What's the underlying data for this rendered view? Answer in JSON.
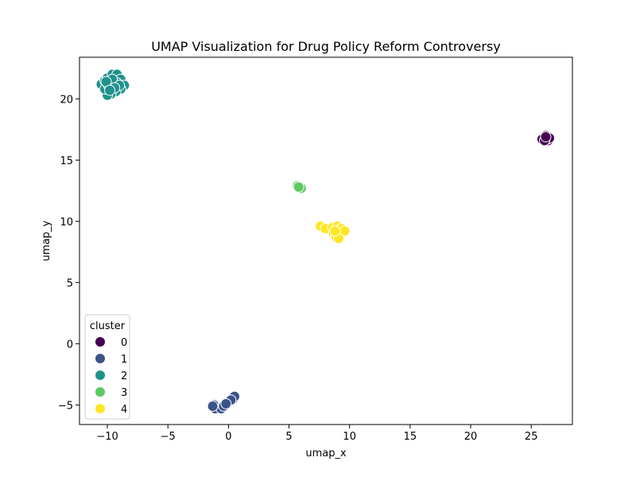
{
  "chart_data": {
    "type": "scatter",
    "title": "UMAP Visualization for Drug Policy Reform Controversy",
    "xlabel": "umap_x",
    "ylabel": "umap_y",
    "xlim": [
      -12.3,
      28.4
    ],
    "ylim": [
      -6.6,
      23.4
    ],
    "xticks": [
      -10,
      -5,
      0,
      5,
      10,
      15,
      20,
      25
    ],
    "yticks": [
      -5,
      0,
      5,
      10,
      15,
      20
    ],
    "xtick_labels": [
      "−10",
      "−5",
      "0",
      "5",
      "10",
      "15",
      "20",
      "25"
    ],
    "ytick_labels": [
      "−5",
      "0",
      "5",
      "10",
      "15",
      "20"
    ],
    "grid": false,
    "legend": {
      "title": "cluster",
      "location": "lower-left"
    },
    "series": [
      {
        "name": "0",
        "color": "#440154",
        "points": [
          [
            26.0,
            16.7
          ],
          [
            26.3,
            16.9
          ],
          [
            26.1,
            16.8
          ],
          [
            26.4,
            16.6
          ],
          [
            25.9,
            16.7
          ],
          [
            26.2,
            17.0
          ],
          [
            26.3,
            16.7
          ],
          [
            26.5,
            16.8
          ],
          [
            26.1,
            16.6
          ],
          [
            26.2,
            16.9
          ]
        ]
      },
      {
        "name": "1",
        "color": "#3b528b",
        "points": [
          [
            -1.2,
            -5.0
          ],
          [
            -1.1,
            -5.3
          ],
          [
            -0.6,
            -5.3
          ],
          [
            -0.4,
            -5.1
          ],
          [
            -0.1,
            -4.8
          ],
          [
            0.1,
            -4.7
          ],
          [
            0.3,
            -4.6
          ],
          [
            0.4,
            -4.5
          ],
          [
            0.5,
            -4.3
          ],
          [
            -1.3,
            -5.1
          ],
          [
            0.2,
            -4.6
          ],
          [
            -0.2,
            -4.9
          ]
        ]
      },
      {
        "name": "2",
        "color": "#21918c",
        "points": [
          [
            -10.5,
            21.2
          ],
          [
            -10.2,
            21.5
          ],
          [
            -10.0,
            21.7
          ],
          [
            -9.6,
            22.0
          ],
          [
            -9.2,
            22.0
          ],
          [
            -8.9,
            21.6
          ],
          [
            -8.6,
            21.1
          ],
          [
            -8.9,
            20.8
          ],
          [
            -9.3,
            20.6
          ],
          [
            -9.7,
            20.4
          ],
          [
            -10.0,
            20.3
          ],
          [
            -10.2,
            20.8
          ],
          [
            -9.9,
            21.1
          ],
          [
            -9.5,
            21.2
          ],
          [
            -9.2,
            21.3
          ],
          [
            -9.6,
            21.6
          ],
          [
            -10.1,
            21.4
          ],
          [
            -9.0,
            21.1
          ],
          [
            -9.4,
            20.9
          ],
          [
            -9.8,
            20.7
          ]
        ]
      },
      {
        "name": "3",
        "color": "#5ec962",
        "points": [
          [
            5.7,
            12.9
          ],
          [
            5.9,
            12.8
          ],
          [
            6.0,
            12.7
          ],
          [
            5.8,
            12.8
          ]
        ]
      },
      {
        "name": "4",
        "color": "#fde725",
        "points": [
          [
            7.6,
            9.6
          ],
          [
            8.0,
            9.4
          ],
          [
            8.6,
            9.5
          ],
          [
            9.0,
            9.6
          ],
          [
            9.3,
            9.4
          ],
          [
            9.6,
            9.2
          ],
          [
            8.7,
            9.0
          ],
          [
            8.9,
            8.7
          ],
          [
            9.1,
            8.6
          ],
          [
            8.8,
            9.2
          ]
        ]
      }
    ]
  }
}
